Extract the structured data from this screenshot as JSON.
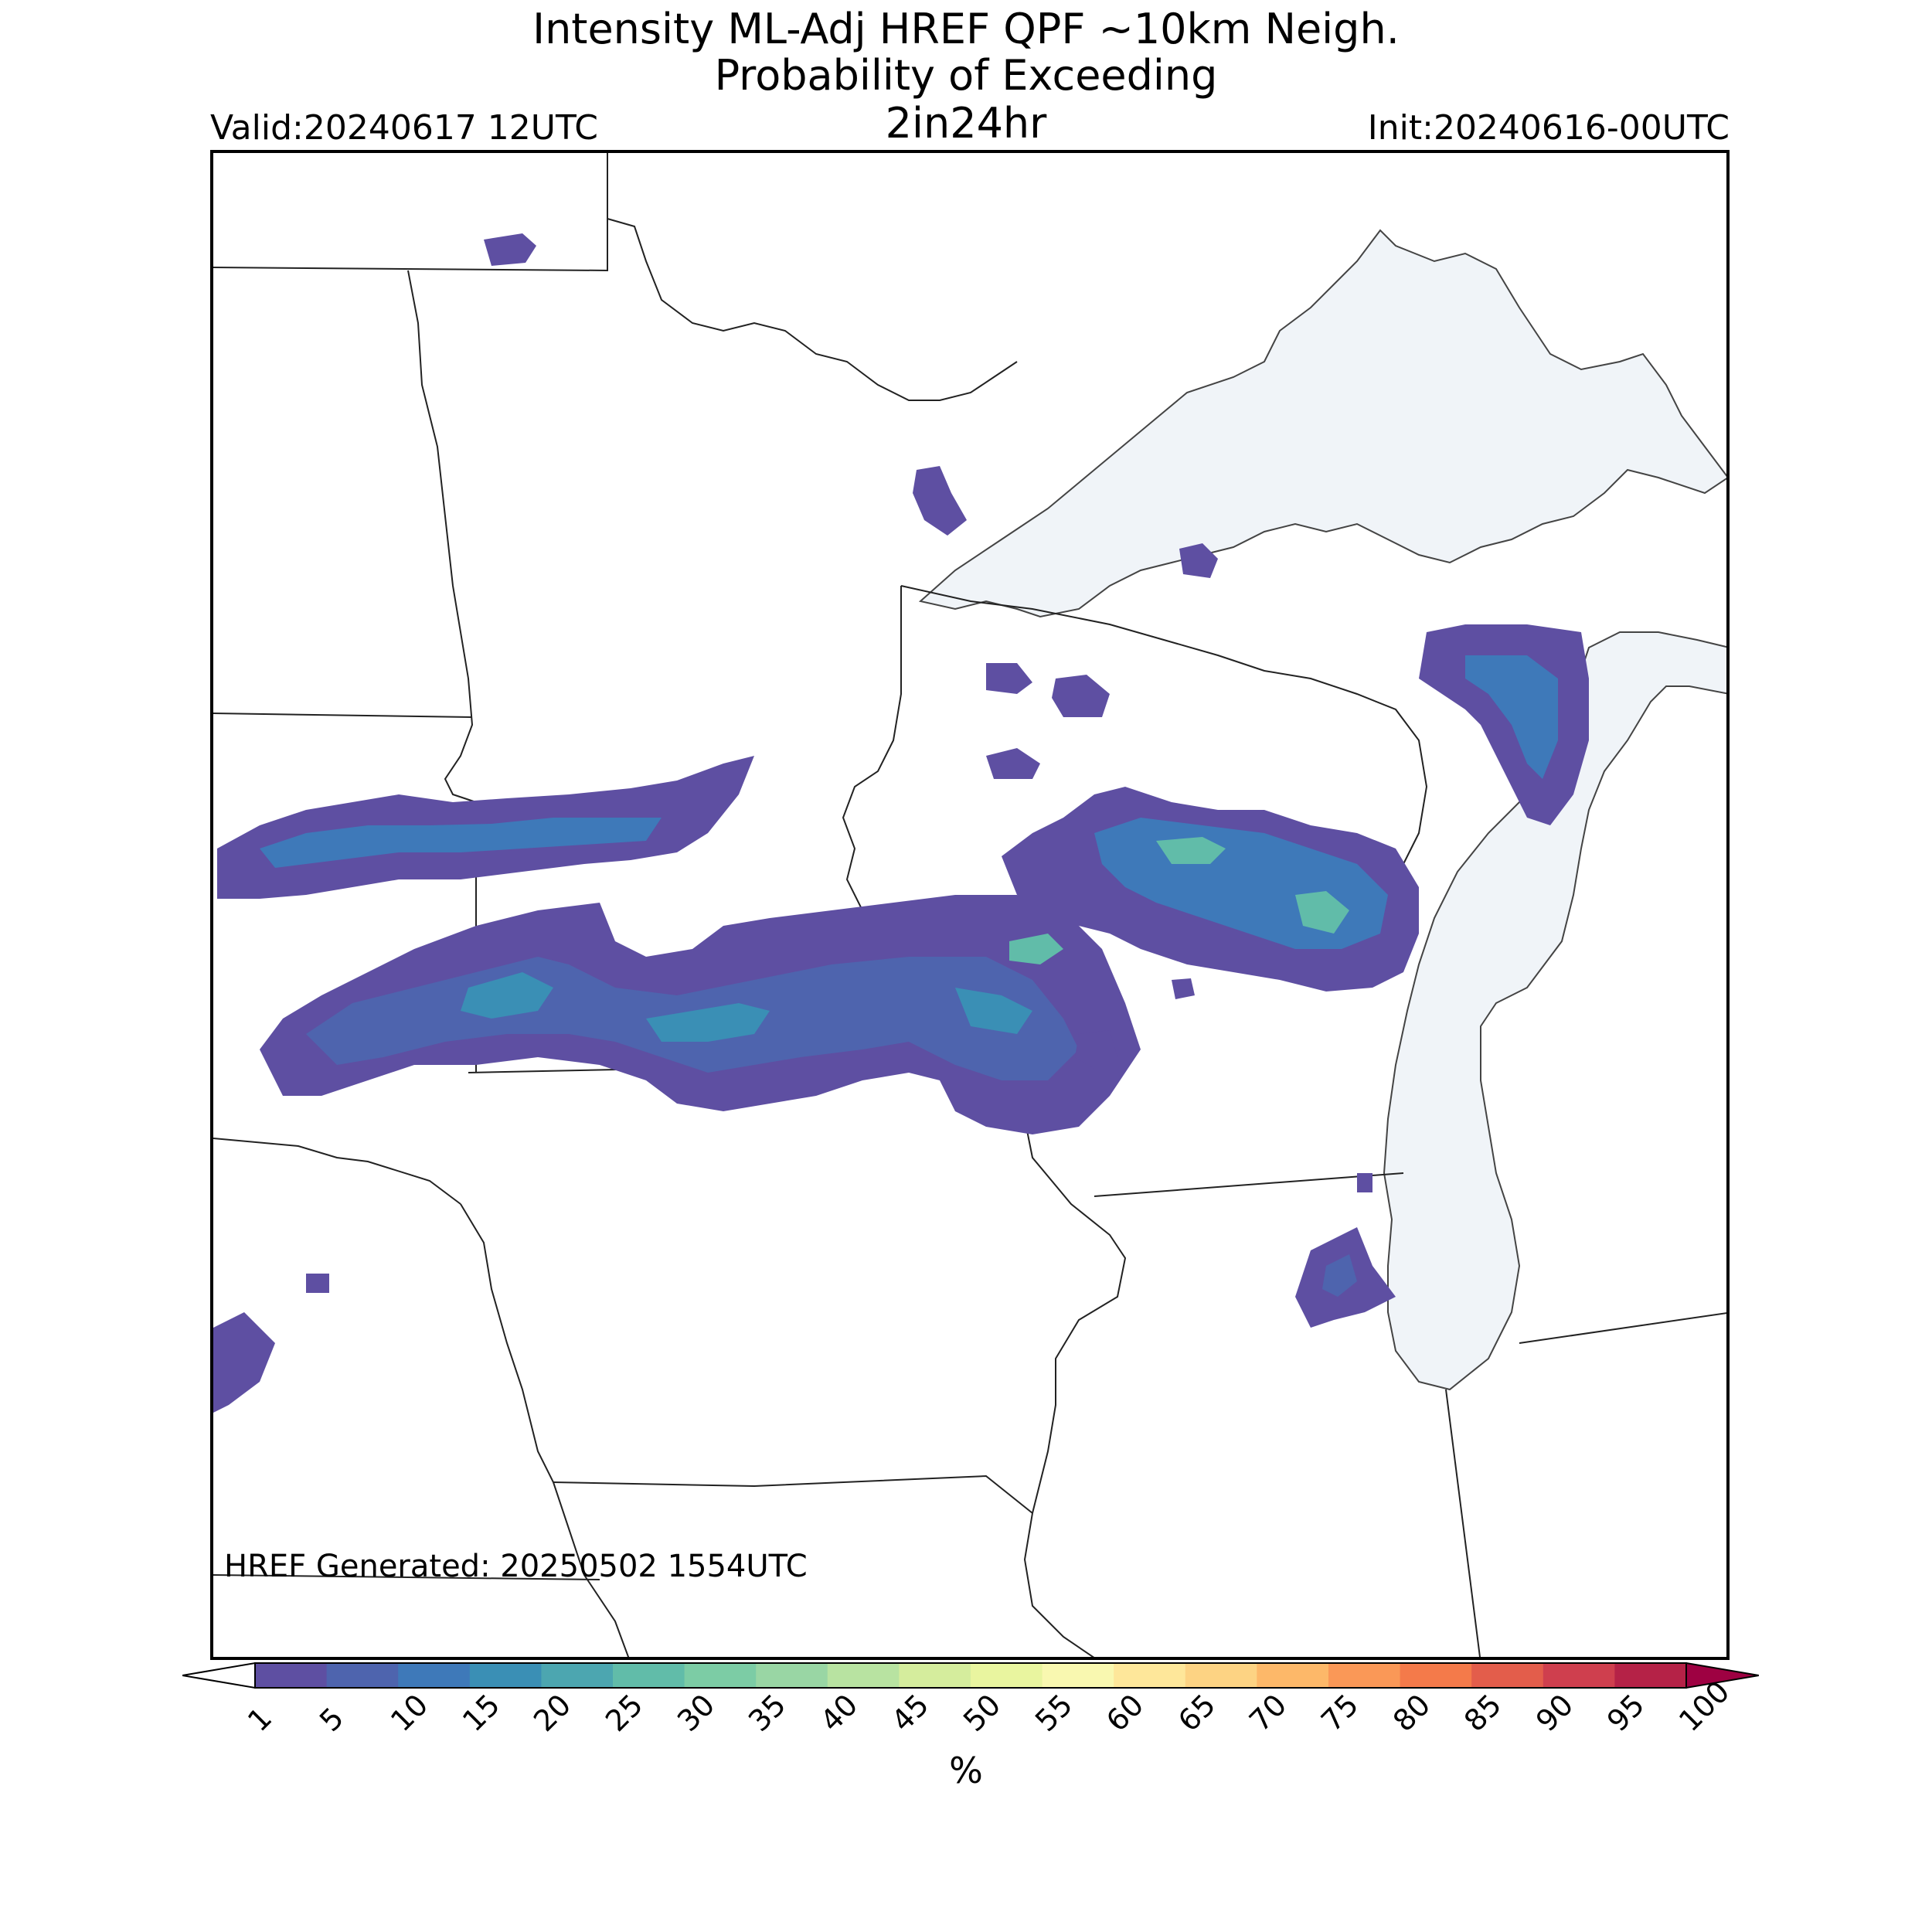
{
  "title": {
    "line1": "Intensity ML-Adj HREF QPF ~10km Neigh.",
    "line2": "Probability of Exceeding",
    "line3": "2in24hr"
  },
  "valid_label": "Valid:20240617 12UTC",
  "init_label": "Init:20240616-00UTC",
  "generated_label": "HREF Generated: 20250502 1554UTC",
  "colorbar": {
    "unit_label": "%",
    "ticks": [
      "1",
      "5",
      "10",
      "15",
      "20",
      "25",
      "30",
      "35",
      "40",
      "45",
      "50",
      "55",
      "60",
      "65",
      "70",
      "75",
      "80",
      "85",
      "90",
      "95",
      "100"
    ],
    "colors": [
      "#5e4fa2",
      "#4e64ae",
      "#3e79b9",
      "#3a8fb5",
      "#4ca6b0",
      "#61bca9",
      "#7ccca5",
      "#99d6a4",
      "#b8e3a1",
      "#d5ed9d",
      "#e9f59f",
      "#f9f8b0",
      "#fee79a",
      "#fdd383",
      "#fdb869",
      "#fa9857",
      "#f47a4a",
      "#e35d4b",
      "#cf3f4e",
      "#b52247"
    ],
    "over_color": "#9e0142",
    "under_color": "#ffffff"
  },
  "map": {
    "water_color": "#f0f4f8",
    "border_color": "#222222",
    "regions": [
      {
        "name": "Lake Superior",
        "type": "lake"
      },
      {
        "name": "Lake Michigan",
        "type": "lake"
      },
      {
        "name": "Lake Huron",
        "type": "lake"
      }
    ],
    "precip_areas": [
      {
        "id": "west-band-upper",
        "level_pct": 10
      },
      {
        "id": "west-band-lower",
        "level_pct": 15
      },
      {
        "id": "central-band",
        "level_pct": 20
      },
      {
        "id": "east-cluster",
        "level_pct": 25
      },
      {
        "id": "north-dakota-spot",
        "level_pct": 1
      },
      {
        "id": "ne-wisconsin",
        "level_pct": 10
      }
    ]
  }
}
